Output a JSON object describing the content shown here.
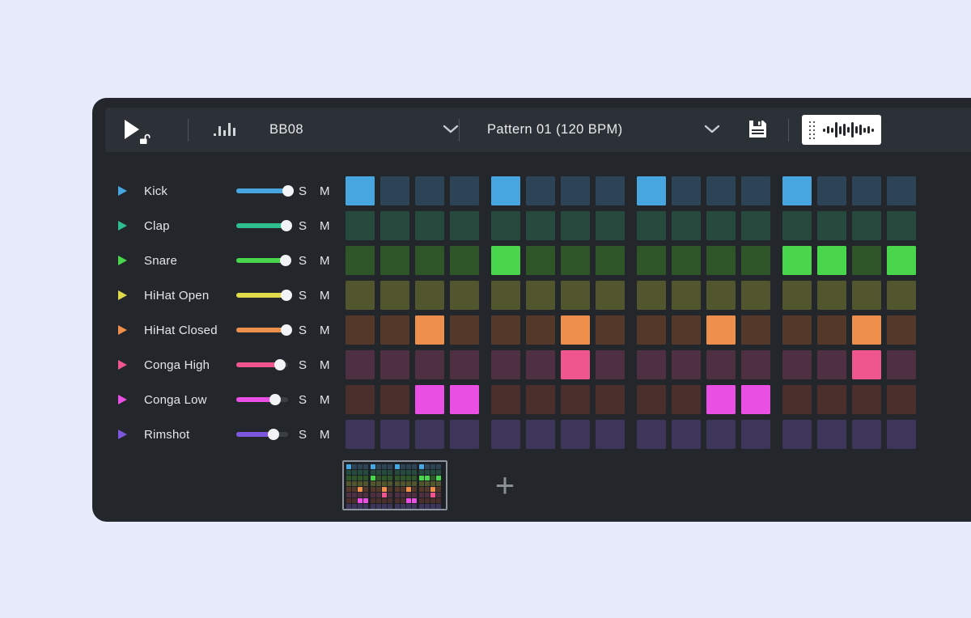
{
  "toolbar": {
    "kit_name": "BB08",
    "pattern_label": "Pattern 01 (120 BPM)"
  },
  "track_controls": {
    "solo_label": "S",
    "mute_label": "M"
  },
  "pattern_bank": {
    "selected_index": 0,
    "add_label": "+"
  },
  "colors": {
    "page_bg": "#e7ebfb",
    "window_bg": "#23262b",
    "toolbar_bg": "#2c3037",
    "thumb_border": "#8d939c",
    "slider_rest": "#3a3e45"
  },
  "steps_per_pattern": 16,
  "tracks": [
    {
      "name": "Kick",
      "accent": "#47a5e0",
      "dim": "#2d4356",
      "volume": 1.0,
      "steps": [
        1,
        0,
        0,
        0,
        1,
        0,
        0,
        0,
        1,
        0,
        0,
        0,
        1,
        0,
        0,
        0
      ]
    },
    {
      "name": "Clap",
      "accent": "#2ebd8e",
      "dim": "#264a3e",
      "volume": 0.97,
      "steps": [
        0,
        0,
        0,
        0,
        0,
        0,
        0,
        0,
        0,
        0,
        0,
        0,
        0,
        0,
        0,
        0
      ]
    },
    {
      "name": "Snare",
      "accent": "#49d64c",
      "dim": "#2f5629",
      "volume": 0.95,
      "steps": [
        0,
        0,
        0,
        0,
        1,
        0,
        0,
        0,
        0,
        0,
        0,
        0,
        1,
        1,
        0,
        1
      ]
    },
    {
      "name": "HiHat Open",
      "accent": "#e0da4b",
      "dim": "#52562f",
      "volume": 0.97,
      "steps": [
        0,
        0,
        0,
        0,
        0,
        0,
        0,
        0,
        0,
        0,
        0,
        0,
        0,
        0,
        0,
        0
      ]
    },
    {
      "name": "HiHat Closed",
      "accent": "#ee8f4c",
      "dim": "#54392b",
      "volume": 0.97,
      "steps": [
        0,
        0,
        1,
        0,
        0,
        0,
        1,
        0,
        0,
        0,
        1,
        0,
        0,
        0,
        1,
        0
      ]
    },
    {
      "name": "Conga High",
      "accent": "#ef568d",
      "dim": "#4e3042",
      "volume": 0.84,
      "steps": [
        0,
        0,
        0,
        0,
        0,
        0,
        1,
        0,
        0,
        0,
        0,
        0,
        0,
        0,
        1,
        0
      ]
    },
    {
      "name": "Conga Low",
      "accent": "#e94fe2",
      "dim": "#4b2f2c",
      "volume": 0.75,
      "steps": [
        0,
        0,
        1,
        1,
        0,
        0,
        0,
        0,
        0,
        0,
        1,
        1,
        0,
        0,
        0,
        0
      ]
    },
    {
      "name": "Rimshot",
      "accent": "#7f57de",
      "dim": "#3d355a",
      "volume": 0.72,
      "steps": [
        0,
        0,
        0,
        0,
        0,
        0,
        0,
        0,
        0,
        0,
        0,
        0,
        0,
        0,
        0,
        0
      ]
    }
  ]
}
